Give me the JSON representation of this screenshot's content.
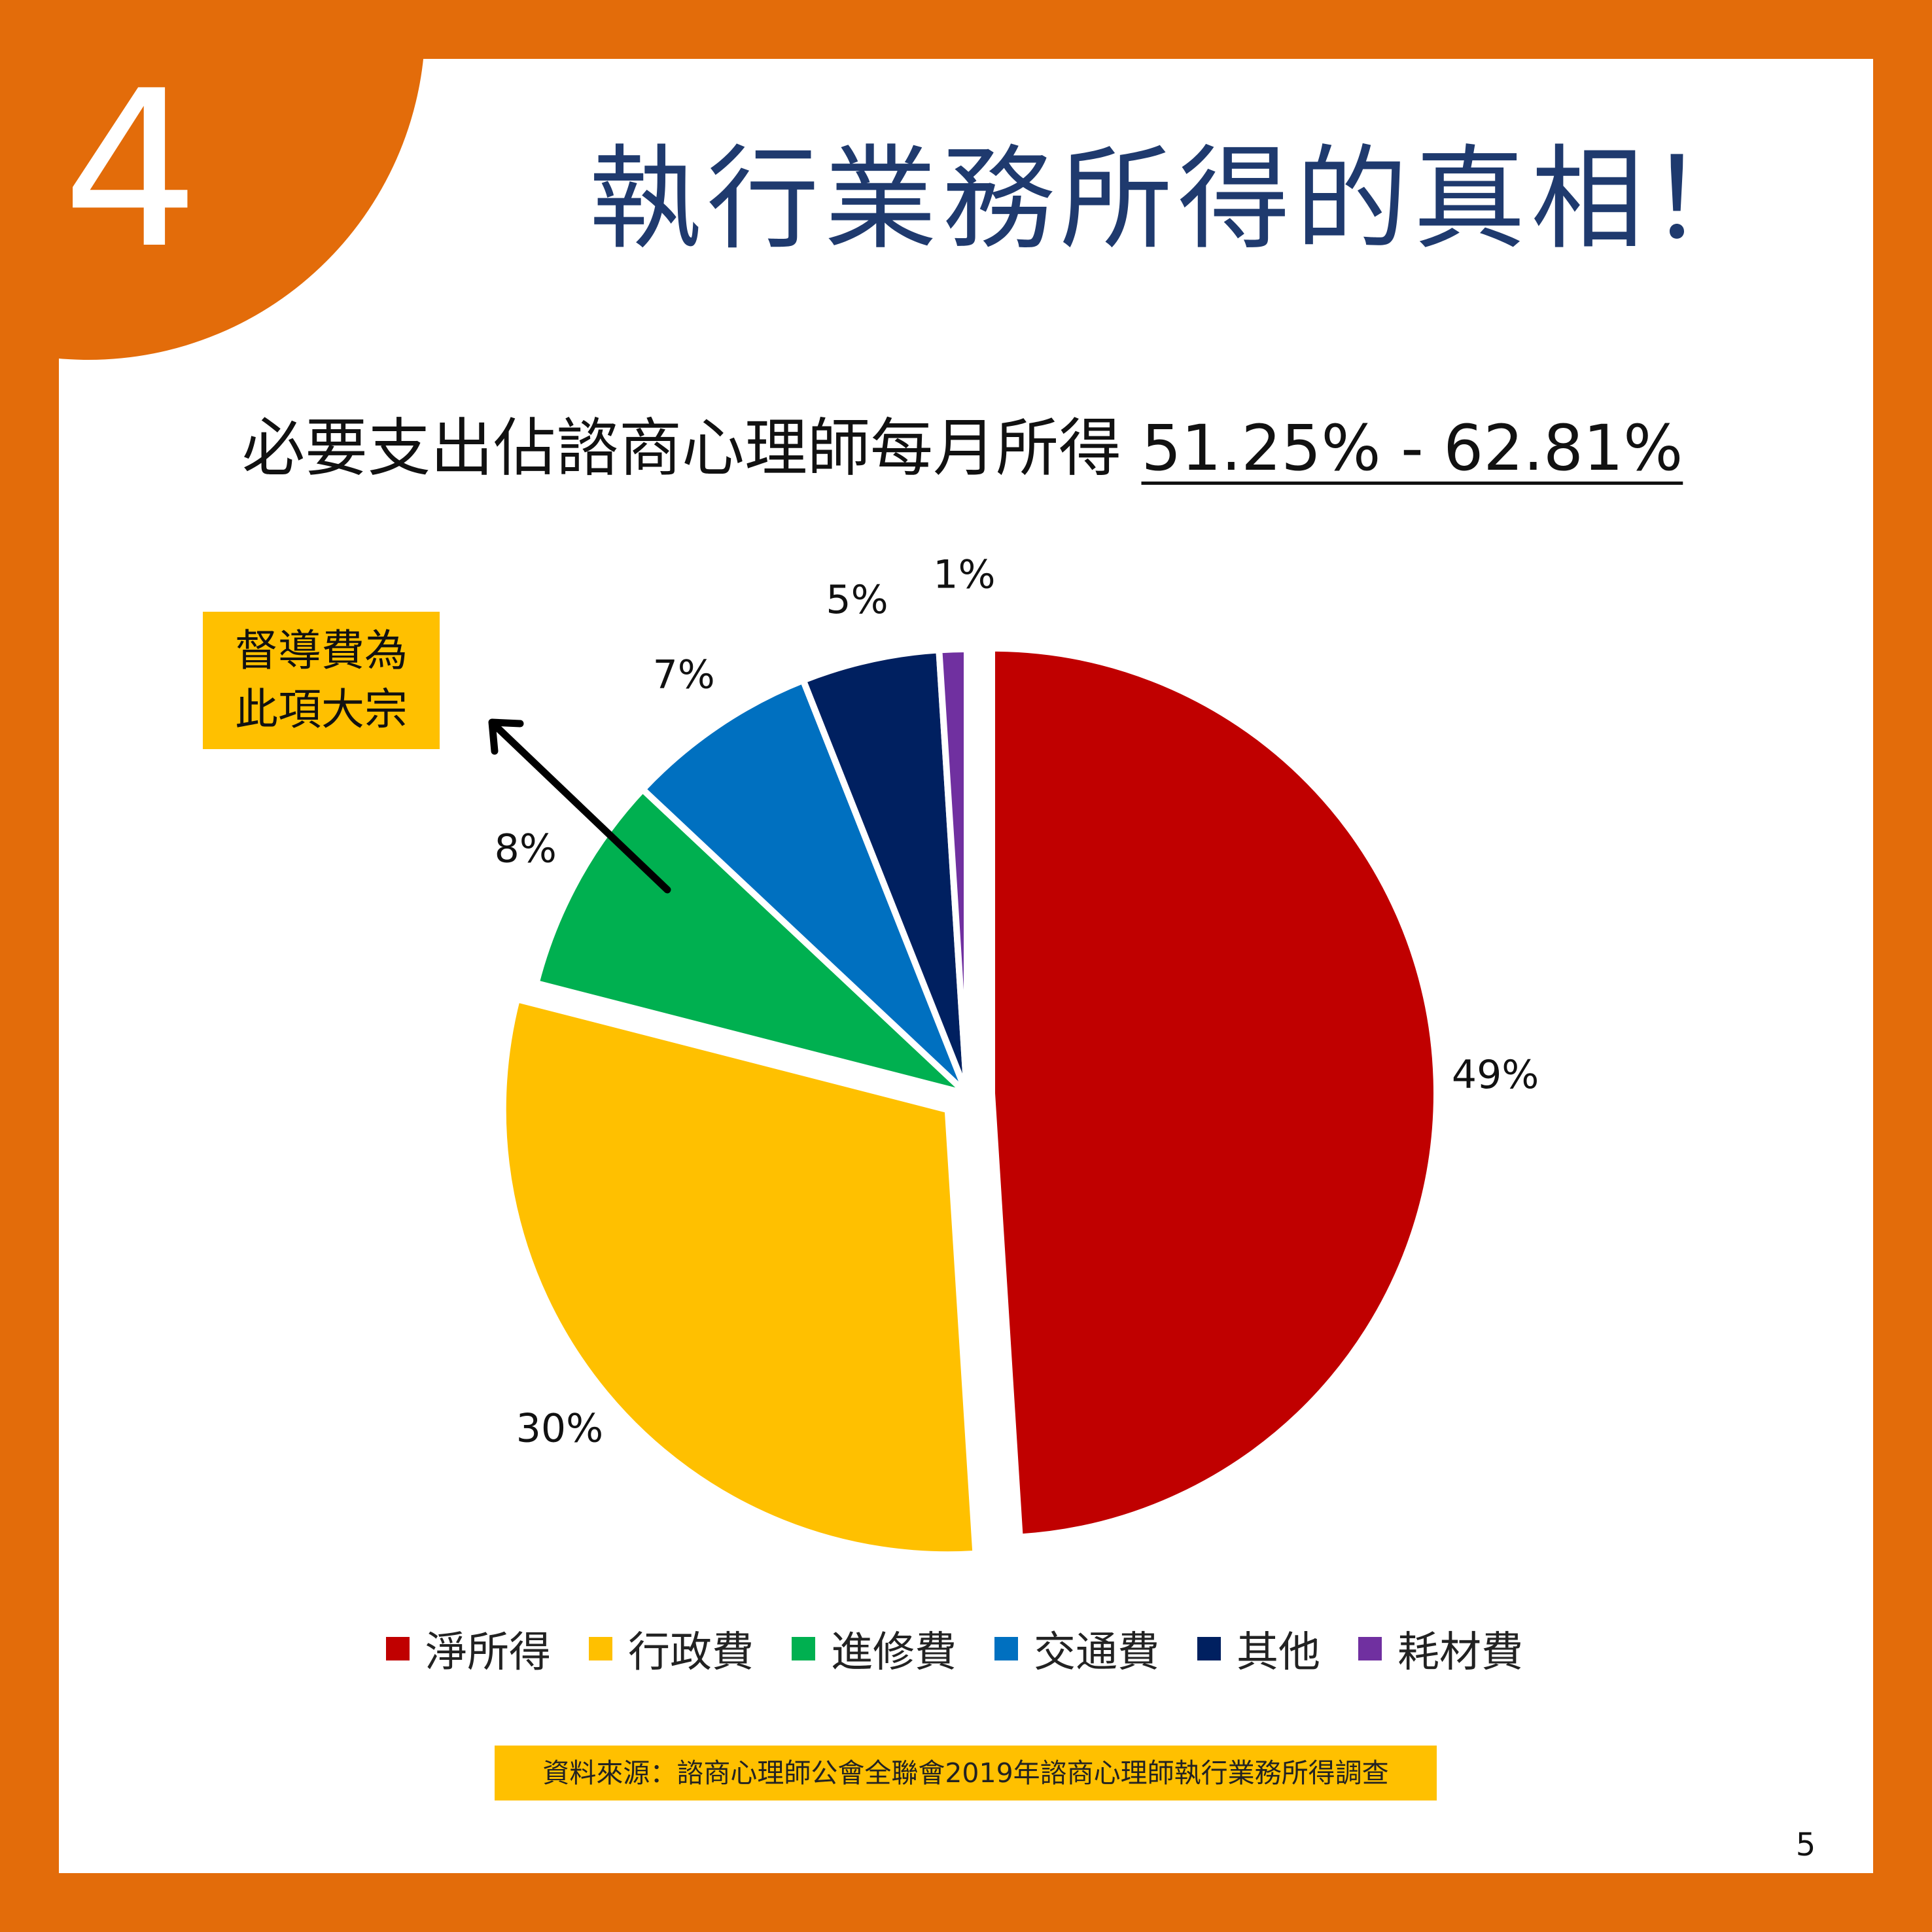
{
  "badge": {
    "number": "4"
  },
  "title": "執行業務所得的真相！",
  "subtitle": {
    "prefix": "必要支出佔諮商心理師每月所得",
    "range": "51.25% - 62.81%"
  },
  "callout": {
    "line1": "督導費為",
    "line2": "此項大宗"
  },
  "source": "資料來源：諮商心理師公會全聯會2019年諮商心理師執行業務所得調查",
  "page_number": "5",
  "chart_data": {
    "type": "pie",
    "unit": "%",
    "start_angle_deg": 0,
    "direction": "clockwise",
    "exploded": [
      "淨所得",
      "行政費"
    ],
    "legend_position": "bottom",
    "slices": [
      {
        "name": "淨所得",
        "value": 49,
        "label": "49%",
        "color": "#C00000"
      },
      {
        "name": "行政費",
        "value": 30,
        "label": "30%",
        "color": "#FFC000"
      },
      {
        "name": "進修費",
        "value": 8,
        "label": "8%",
        "color": "#00B050"
      },
      {
        "name": "交通費",
        "value": 7,
        "label": "7%",
        "color": "#0070C0"
      },
      {
        "name": "其他",
        "value": 5,
        "label": "5%",
        "color": "#002060"
      },
      {
        "name": "耗材費",
        "value": 1,
        "label": "1%",
        "color": "#7030A0"
      }
    ]
  },
  "colors": {
    "frame": "#E36C0A",
    "title": "#1F3A6E",
    "highlight": "#FFC000"
  }
}
